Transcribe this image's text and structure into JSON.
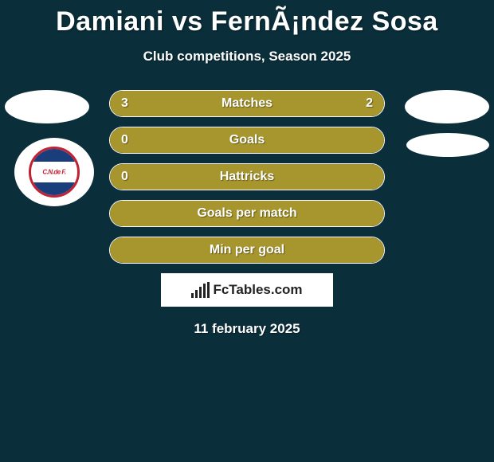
{
  "title": "Damiani vs FernÃ¡ndez Sosa",
  "subtitle": "Club competitions, Season 2025",
  "background_color": "#0a2e3a",
  "fill_color": "#a7962e",
  "crest": {
    "text": "C.N.de F.",
    "ring_color": "#c22033",
    "stripe_color": "#1a3d7c"
  },
  "stats": [
    {
      "label": "Matches",
      "left_val": "3",
      "right_val": "2",
      "left_pct": 60,
      "right_pct": 40,
      "split": true
    },
    {
      "label": "Goals",
      "left_val": "0",
      "right_val": "",
      "left_pct": 100,
      "right_pct": 0,
      "split": false
    },
    {
      "label": "Hattricks",
      "left_val": "0",
      "right_val": "",
      "left_pct": 100,
      "right_pct": 0,
      "split": false
    },
    {
      "label": "Goals per match",
      "left_val": "",
      "right_val": "",
      "left_pct": 100,
      "right_pct": 0,
      "split": false
    },
    {
      "label": "Min per goal",
      "left_val": "",
      "right_val": "",
      "left_pct": 100,
      "right_pct": 0,
      "split": false
    }
  ],
  "footer_brand": "FcTables.com",
  "date": "11 february 2025"
}
